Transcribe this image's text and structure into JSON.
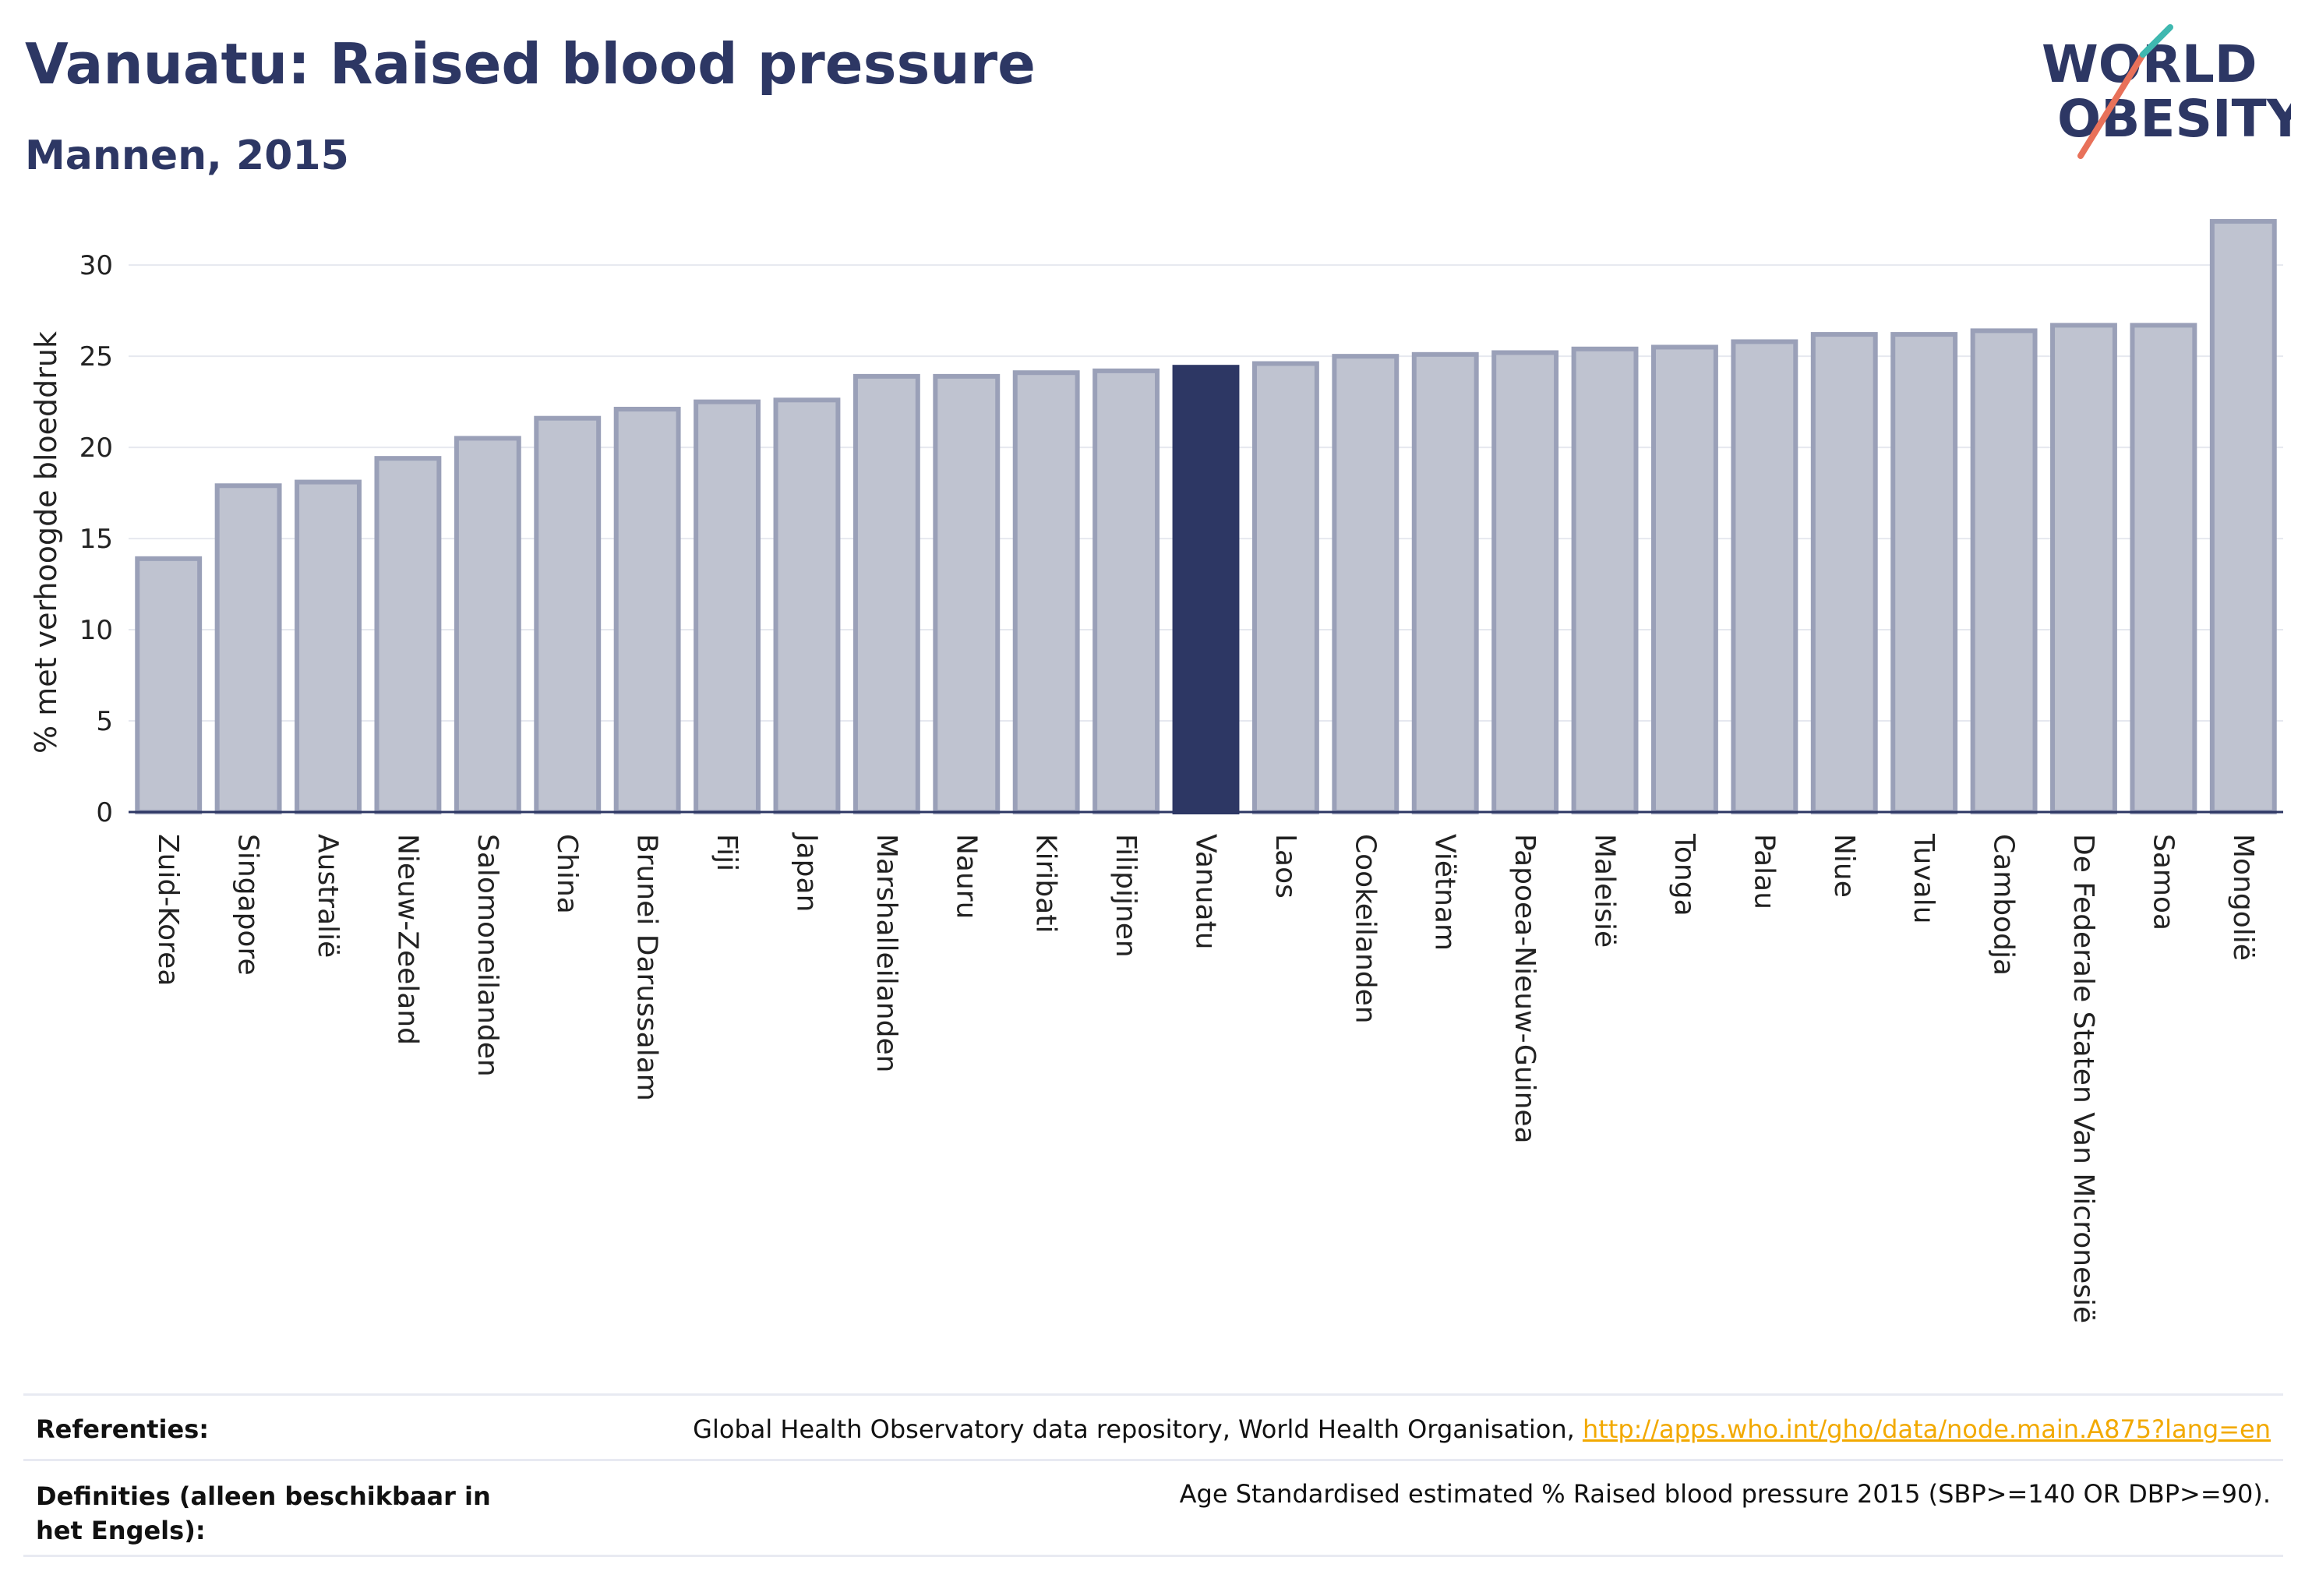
{
  "header": {
    "title": "Vanuatu: Raised blood pressure",
    "subtitle": "Mannen, 2015"
  },
  "logo": {
    "line1": "WORLD",
    "line2": "OBESITY"
  },
  "chart_data": {
    "type": "bar",
    "ylabel": "% met verhoogde bloeddruk",
    "xlabel": "",
    "ylim": [
      0,
      33
    ],
    "yticks": [
      0,
      5,
      10,
      15,
      20,
      25,
      30
    ],
    "grid": true,
    "highlight": "Vanuatu",
    "colors": {
      "bar": "#bfc3d0",
      "bar_stroke": "#9aa0b8",
      "highlight": "#2d3764",
      "axis": "#2d3764",
      "grid": "#e6e8ef"
    },
    "categories": [
      "Zuid-Korea",
      "Singapore",
      "Australië",
      "Nieuw-Zeeland",
      "Salomoneilanden",
      "China",
      "Brunei Darussalam",
      "Fiji",
      "Japan",
      "Marshalleilanden",
      "Nauru",
      "Kiribati",
      "Filipijnen",
      "Vanuatu",
      "Laos",
      "Cookeilanden",
      "Viëtnam",
      "Papoea-Nieuw-Guinea",
      "Maleisië",
      "Tonga",
      "Palau",
      "Niue",
      "Tuvalu",
      "Cambodja",
      "De Federale Staten Van Micronesië",
      "Samoa",
      "Mongolië"
    ],
    "values": [
      13.9,
      17.9,
      18.1,
      19.4,
      20.5,
      21.6,
      22.1,
      22.5,
      22.6,
      23.9,
      23.9,
      24.1,
      24.2,
      24.4,
      24.6,
      25.0,
      25.1,
      25.2,
      25.4,
      25.5,
      25.8,
      26.2,
      26.2,
      26.4,
      26.7,
      26.7,
      32.4
    ]
  },
  "footer": {
    "references_label": "Referenties:",
    "references_text": "Global Health Observatory data repository, World Health Organisation, ",
    "references_link": "http://apps.who.int/gho/data/node.main.A875?lang=en",
    "definitions_label": "Definities (alleen beschikbaar in het Engels):",
    "definitions_text": "Age Standardised estimated % Raised blood pressure 2015 (SBP>=140 OR DBP>=90)."
  }
}
